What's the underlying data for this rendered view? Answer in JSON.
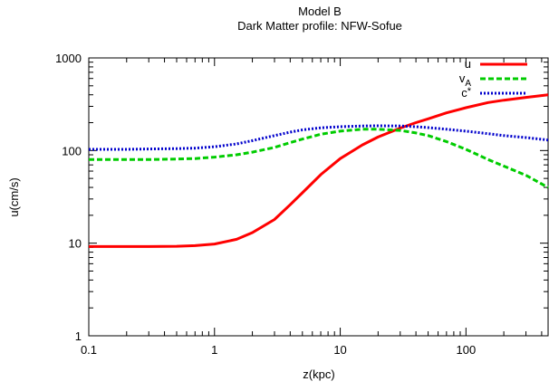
{
  "chart_data": {
    "type": "line",
    "title": "Model B",
    "subtitle": "Dark Matter profile: NFW-Sofue",
    "xlabel": "z(kpc)",
    "ylabel": "u(cm/s)",
    "x_scale": "log",
    "y_scale": "log",
    "xlim": [
      0.1,
      450
    ],
    "ylim": [
      1,
      1000
    ],
    "x_ticks": [
      0.1,
      1,
      10,
      100
    ],
    "x_tick_labels": [
      "0.1",
      "1",
      "10",
      "100"
    ],
    "y_ticks": [
      1,
      10,
      100,
      1000
    ],
    "y_tick_labels": [
      "1",
      "10",
      "100",
      "1000"
    ],
    "legend_position": "top-right",
    "series": [
      {
        "name": "u",
        "legend_main": "u",
        "legend_sub": "",
        "legend_sup": "",
        "color": "#ff0000",
        "style": "solid",
        "x": [
          0.1,
          0.2,
          0.3,
          0.5,
          0.7,
          1,
          1.5,
          2,
          3,
          4,
          5,
          7,
          10,
          15,
          20,
          30,
          40,
          50,
          70,
          100,
          150,
          200,
          300,
          450
        ],
        "y": [
          9.2,
          9.2,
          9.2,
          9.25,
          9.4,
          9.8,
          11,
          13,
          18,
          26,
          35,
          55,
          82,
          115,
          140,
          175,
          200,
          220,
          255,
          290,
          330,
          350,
          375,
          400
        ]
      },
      {
        "name": "v_A",
        "legend_main": "v",
        "legend_sub": "A",
        "legend_sup": "",
        "color": "#00cc00",
        "style": "dashed",
        "x": [
          0.1,
          0.2,
          0.3,
          0.5,
          0.7,
          1,
          1.5,
          2,
          3,
          4,
          5,
          7,
          10,
          15,
          20,
          30,
          40,
          50,
          70,
          100,
          150,
          200,
          300,
          450
        ],
        "y": [
          80,
          80,
          80,
          81,
          82,
          85,
          90,
          96,
          108,
          122,
          133,
          150,
          162,
          170,
          170,
          165,
          155,
          145,
          125,
          103,
          80,
          68,
          54,
          40
        ]
      },
      {
        "name": "c*",
        "legend_main": "c",
        "legend_sub": "",
        "legend_sup": "*",
        "color": "#0000cc",
        "style": "dotted",
        "x": [
          0.1,
          0.2,
          0.3,
          0.5,
          0.7,
          1,
          1.5,
          2,
          3,
          4,
          5,
          7,
          10,
          15,
          20,
          30,
          40,
          50,
          70,
          100,
          150,
          200,
          300,
          450
        ],
        "y": [
          103,
          103,
          104,
          105,
          106,
          110,
          118,
          128,
          145,
          158,
          167,
          176,
          181,
          184,
          185,
          184,
          181,
          177,
          170,
          162,
          152,
          145,
          138,
          130
        ]
      }
    ]
  }
}
